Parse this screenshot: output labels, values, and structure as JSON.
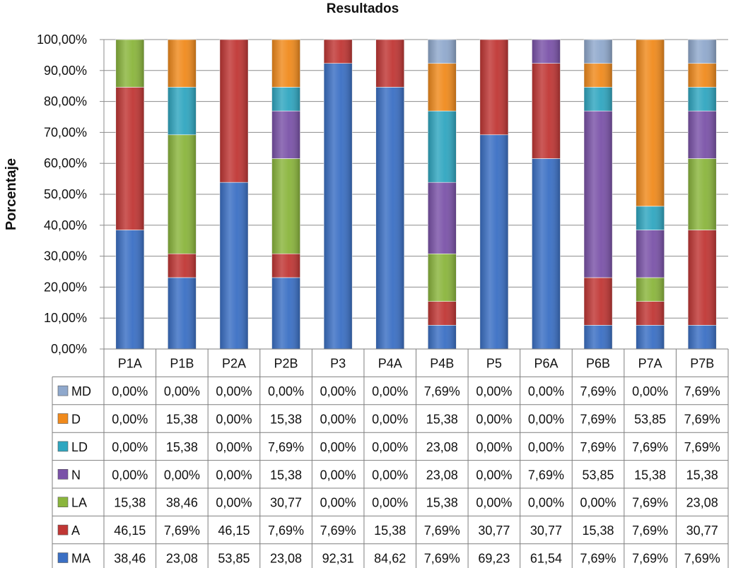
{
  "chart_data": {
    "type": "bar",
    "stacked": true,
    "title": "Resultados",
    "xlabel": "",
    "ylabel": "Porcentaje",
    "ylim": [
      0,
      100
    ],
    "y_ticks": [
      "0,00%",
      "10,00%",
      "20,00%",
      "30,00%",
      "40,00%",
      "50,00%",
      "60,00%",
      "70,00%",
      "80,00%",
      "90,00%",
      "100,00%"
    ],
    "grid": true,
    "legend": "data-table-left",
    "categories": [
      "P1A",
      "P1B",
      "P2A",
      "P2B",
      "P3",
      "P4A",
      "P4B",
      "P5",
      "P6A",
      "P6B",
      "P7A",
      "P7B"
    ],
    "series": [
      {
        "name": "MD",
        "color": "#8FA8CC",
        "values": [
          0,
          0,
          0,
          0,
          0,
          0,
          7.69,
          0,
          0,
          7.69,
          0,
          7.69
        ],
        "labels": [
          "0,00%",
          "0,00%",
          "0,00%",
          "0,00%",
          "0,00%",
          "0,00%",
          "7,69%",
          "0,00%",
          "0,00%",
          "7,69%",
          "0,00%",
          "7,69%"
        ]
      },
      {
        "name": "D",
        "color": "#F08A1C",
        "values": [
          0,
          15.38,
          0,
          15.38,
          0,
          0,
          15.38,
          0,
          0,
          7.69,
          53.85,
          7.69
        ],
        "labels": [
          "0,00%",
          "15,38",
          "0,00%",
          "15,38",
          "0,00%",
          "0,00%",
          "15,38",
          "0,00%",
          "0,00%",
          "7,69%",
          "53,85",
          "7,69%"
        ]
      },
      {
        "name": "LD",
        "color": "#2FA6C0",
        "values": [
          0,
          15.38,
          0,
          7.69,
          0,
          0,
          23.08,
          0,
          0,
          7.69,
          7.69,
          7.69
        ],
        "labels": [
          "0,00%",
          "15,38",
          "0,00%",
          "7,69%",
          "0,00%",
          "0,00%",
          "23,08",
          "0,00%",
          "0,00%",
          "7,69%",
          "7,69%",
          "7,69%"
        ]
      },
      {
        "name": "N",
        "color": "#7A52A8",
        "values": [
          0,
          0,
          0,
          15.38,
          0,
          0,
          23.08,
          0,
          7.69,
          53.85,
          15.38,
          15.38
        ],
        "labels": [
          "0,00%",
          "0,00%",
          "0,00%",
          "15,38",
          "0,00%",
          "0,00%",
          "23,08",
          "0,00%",
          "7,69%",
          "53,85",
          "15,38",
          "15,38"
        ]
      },
      {
        "name": "LA",
        "color": "#8AB53C",
        "values": [
          15.38,
          38.46,
          0,
          30.77,
          0,
          0,
          15.38,
          0,
          0,
          0,
          7.69,
          23.08
        ],
        "labels": [
          "15,38",
          "38,46",
          "0,00%",
          "30,77",
          "0,00%",
          "0,00%",
          "15,38",
          "0,00%",
          "0,00%",
          "0,00%",
          "7,69%",
          "23,08"
        ]
      },
      {
        "name": "A",
        "color": "#C03634",
        "values": [
          46.15,
          7.69,
          46.15,
          7.69,
          7.69,
          15.38,
          7.69,
          30.77,
          30.77,
          15.38,
          7.69,
          30.77
        ],
        "labels": [
          "46,15",
          "7,69%",
          "46,15",
          "7,69%",
          "7,69%",
          "15,38",
          "7,69%",
          "30,77",
          "30,77",
          "15,38",
          "7,69%",
          "30,77"
        ]
      },
      {
        "name": "MA",
        "color": "#3A6FC4",
        "values": [
          38.46,
          23.08,
          53.85,
          23.08,
          92.31,
          84.62,
          7.69,
          69.23,
          61.54,
          7.69,
          7.69,
          7.69
        ],
        "labels": [
          "38,46",
          "23,08",
          "53,85",
          "23,08",
          "92,31",
          "84,62",
          "7,69%",
          "69,23",
          "61,54",
          "7,69%",
          "7,69%",
          "7,69%"
        ]
      }
    ]
  }
}
